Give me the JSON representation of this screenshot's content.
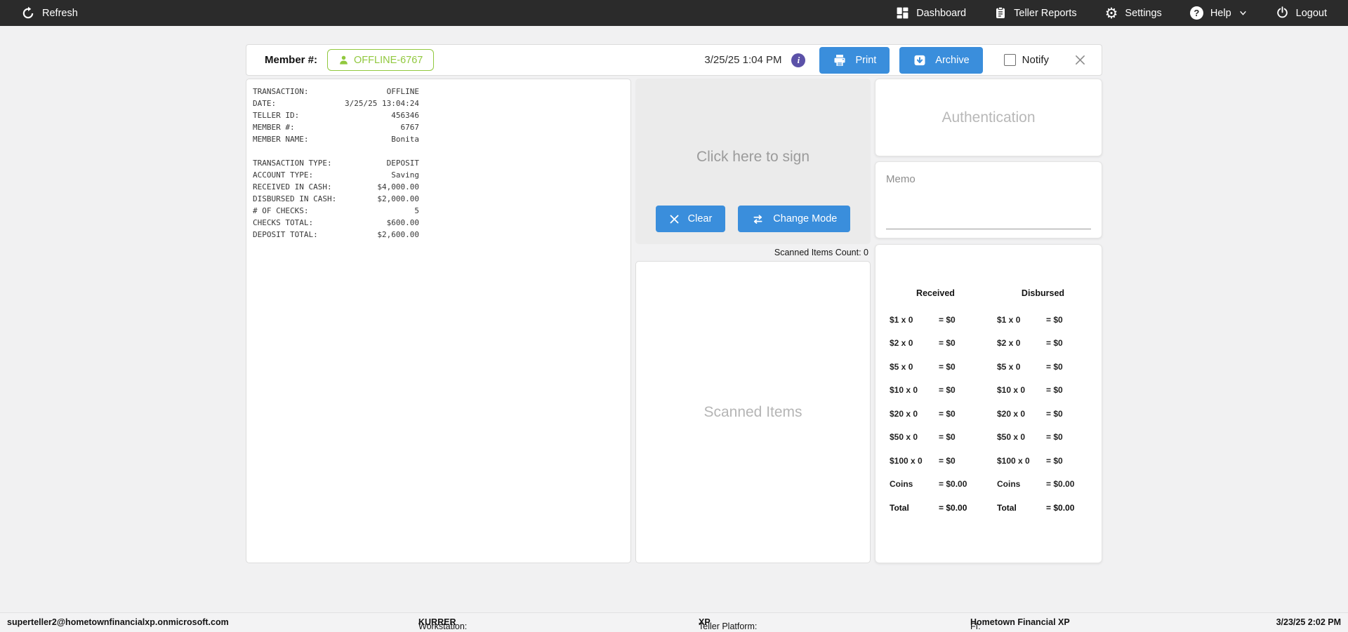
{
  "topbar": {
    "refresh": "Refresh",
    "dashboard": "Dashboard",
    "teller_reports": "Teller Reports",
    "settings": "Settings",
    "help": "Help",
    "logout": "Logout"
  },
  "header": {
    "member_label": "Member #:",
    "member_value": "OFFLINE-6767",
    "datetime": "3/25/25 1:04 PM",
    "print_label": "Print",
    "archive_label": "Archive",
    "notify_label": "Notify",
    "notify_checked": false
  },
  "receipt": {
    "rows": [
      {
        "label": "TRANSACTION:",
        "value": "OFFLINE"
      },
      {
        "label": "DATE:",
        "value": "3/25/25 13:04:24"
      },
      {
        "label": "TELLER ID:",
        "value": "456346"
      },
      {
        "label": "MEMBER #:",
        "value": "6767"
      },
      {
        "label": "MEMBER NAME:",
        "value": "Bonita"
      },
      {
        "spacer": true
      },
      {
        "label": "TRANSACTION TYPE:",
        "value": "DEPOSIT"
      },
      {
        "label": "ACCOUNT TYPE:",
        "value": "Saving"
      },
      {
        "label": "RECEIVED IN CASH:",
        "value": "$4,000.00"
      },
      {
        "label": "DISBURSED IN CASH:",
        "value": "$2,000.00"
      },
      {
        "label": "# OF CHECKS:",
        "value": "5"
      },
      {
        "label": "CHECKS TOTAL:",
        "value": "$600.00"
      },
      {
        "label": "DEPOSIT TOTAL:",
        "value": "$2,600.00"
      }
    ]
  },
  "signature": {
    "placeholder": "Click here to sign",
    "clear_label": "Clear",
    "change_mode_label": "Change Mode"
  },
  "scanned": {
    "count_text": "Scanned Items Count: 0",
    "placeholder": "Scanned Items"
  },
  "authentication": {
    "placeholder": "Authentication"
  },
  "memo": {
    "label": "Memo",
    "value": ""
  },
  "cash": {
    "received_header": "Received",
    "disbursed_header": "Disbursed",
    "received_rows": [
      {
        "label": "$1 x 0",
        "value": "= $0"
      },
      {
        "label": "$2 x 0",
        "value": "= $0"
      },
      {
        "label": "$5 x 0",
        "value": "= $0"
      },
      {
        "label": "$10 x 0",
        "value": "= $0"
      },
      {
        "label": "$20 x 0",
        "value": "= $0"
      },
      {
        "label": "$50 x 0",
        "value": "= $0"
      },
      {
        "label": "$100 x 0",
        "value": "= $0"
      },
      {
        "label": "Coins",
        "value": "= $0.00"
      },
      {
        "label": "Total",
        "value": "= $0.00",
        "bold": true
      }
    ],
    "disbursed_rows": [
      {
        "label": "$1 x 0",
        "value": "= $0"
      },
      {
        "label": "$2 x 0",
        "value": "= $0"
      },
      {
        "label": "$5 x 0",
        "value": "= $0"
      },
      {
        "label": "$10 x 0",
        "value": "= $0"
      },
      {
        "label": "$20 x 0",
        "value": "= $0"
      },
      {
        "label": "$50 x 0",
        "value": "= $0"
      },
      {
        "label": "$100 x 0",
        "value": "= $0"
      },
      {
        "label": "Coins",
        "value": "= $0.00"
      },
      {
        "label": "Total",
        "value": "= $0.00",
        "bold": true
      }
    ]
  },
  "footer": {
    "user_email": "superteller2@hometownfinancialxp.onmicrosoft.com",
    "workstation_label": "Workstation:",
    "workstation_value": "KURRER",
    "platform_label": "Teller Platform:",
    "platform_value": "XP",
    "fi_label": "FI:",
    "fi_value": "Hometown Financial XP",
    "datetime": "3/23/25 2:02 PM"
  },
  "colors": {
    "topbar_bg": "#2b2b2b",
    "accent_blue": "#3a8edc",
    "member_green": "#91c83e",
    "info_purple": "#5b51a8",
    "page_bg": "#f1f1f2"
  },
  "icons": {
    "refresh": "refresh-icon",
    "dashboard": "dashboard-grid-icon",
    "teller_reports": "clipboard-icon",
    "settings": "gear-icon",
    "help": "question-circle-icon",
    "help_chevron": "chevron-down-icon",
    "logout": "power-icon",
    "member": "person-icon",
    "info": "info-icon",
    "print": "printer-icon",
    "archive": "archive-box-icon",
    "clear": "x-icon",
    "change_mode": "swap-arrows-icon",
    "close": "close-icon"
  }
}
